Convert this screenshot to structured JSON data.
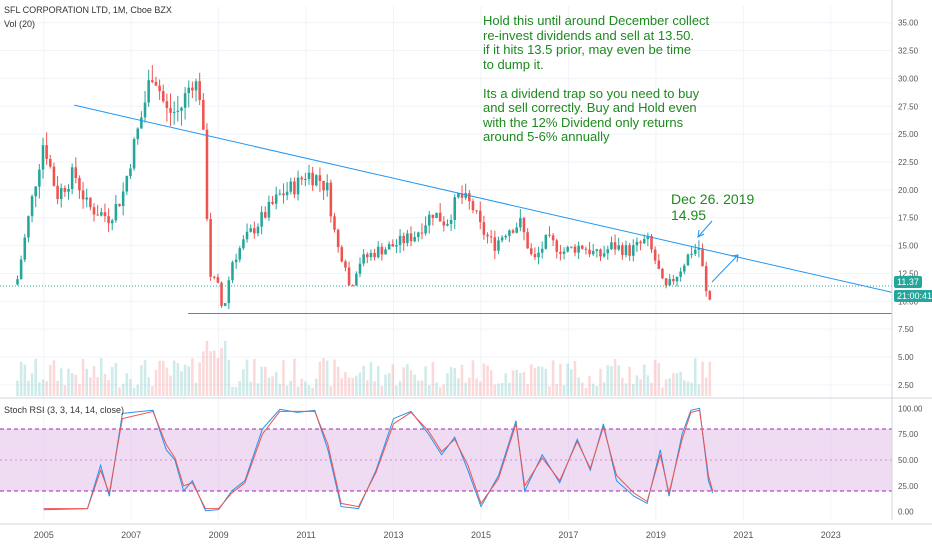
{
  "header": {
    "symbol_line": "SFL CORPORATION LTD, 1M, Cboe BZX",
    "volume_label": "Vol (20)"
  },
  "stoch_label": "Stoch RSI (3, 3, 14, 14, close)",
  "note_text": "Hold this until around December collect\nre-invest dividends and sell at 13.50.\nif it hits 13.5 prior,  may even be time\nto dump it.\n\nIts a dividend trap so you need to buy\nand sell correctly.  Buy and Hold even\nwith the 12% Dividend only returns\naround 5-6% annually",
  "annotation_text": "Dec  26. 2019\n14.95",
  "badges": {
    "price": "11.37",
    "countdown": "21:00:41"
  },
  "colors": {
    "up": "#26a69a",
    "down": "#ef5350",
    "trendline": "#2196f3",
    "note": "#1d8a1d",
    "k_line": "#2196f3",
    "d_line": "#ef5350",
    "stoch_band": "#e1bee7"
  },
  "chart_data": [
    {
      "type": "candlestick",
      "title": "SFL CORPORATION LTD, 1M, Cboe BZX",
      "x_ticks": [
        "2005",
        "2007",
        "2009",
        "2011",
        "2013",
        "2015",
        "2017",
        "2019",
        "2021",
        "2023"
      ],
      "y_ticks": [
        "2.50",
        "5.00",
        "7.50",
        "10.00",
        "12.50",
        "15.00",
        "17.50",
        "20.00",
        "22.50",
        "25.00",
        "27.50",
        "30.00",
        "32.50",
        "35.00"
      ],
      "ylim": [
        1.5,
        36.5
      ],
      "xlim": [
        2004.0,
        2024.4
      ],
      "close_path": [
        [
          2004.4,
          12
        ],
        [
          2004.7,
          18.5
        ],
        [
          2005.0,
          24.5
        ],
        [
          2005.3,
          19.5
        ],
        [
          2005.7,
          21.5
        ],
        [
          2006.0,
          18.5
        ],
        [
          2006.5,
          17.5
        ],
        [
          2006.8,
          19.5
        ],
        [
          2007.0,
          23
        ],
        [
          2007.2,
          26
        ],
        [
          2007.5,
          31
        ],
        [
          2007.8,
          27
        ],
        [
          2008.1,
          27
        ],
        [
          2008.4,
          30
        ],
        [
          2008.6,
          28.5
        ],
        [
          2008.8,
          12.5
        ],
        [
          2009.0,
          11.2
        ],
        [
          2009.1,
          8.8
        ],
        [
          2009.3,
          13.5
        ],
        [
          2009.6,
          15.5
        ],
        [
          2010.0,
          17.5
        ],
        [
          2010.4,
          19.5
        ],
        [
          2010.8,
          20.5
        ],
        [
          2011.0,
          21.5
        ],
        [
          2011.3,
          21
        ],
        [
          2011.5,
          20
        ],
        [
          2011.7,
          15
        ],
        [
          2011.9,
          13.5
        ],
        [
          2012.0,
          11
        ],
        [
          2012.2,
          13.5
        ],
        [
          2012.6,
          14.5
        ],
        [
          2013.0,
          15
        ],
        [
          2013.5,
          16
        ],
        [
          2013.9,
          18
        ],
        [
          2014.2,
          17
        ],
        [
          2014.5,
          19.5
        ],
        [
          2014.8,
          18.5
        ],
        [
          2015.0,
          16.5
        ],
        [
          2015.3,
          15
        ],
        [
          2015.6,
          16.5
        ],
        [
          2015.9,
          17
        ],
        [
          2016.2,
          13.5
        ],
        [
          2016.5,
          15.5
        ],
        [
          2016.9,
          14.5
        ],
        [
          2017.3,
          15
        ],
        [
          2017.7,
          14
        ],
        [
          2018.0,
          15
        ],
        [
          2018.4,
          14.5
        ],
        [
          2018.8,
          15.5
        ],
        [
          2019.0,
          13.5
        ],
        [
          2019.2,
          11
        ],
        [
          2019.5,
          12.5
        ],
        [
          2019.8,
          14.5
        ],
        [
          2020.0,
          14.8
        ],
        [
          2020.1,
          12
        ],
        [
          2020.2,
          9.5
        ],
        [
          2020.3,
          11.4
        ]
      ],
      "trendlines": [
        {
          "name": "descending-resistance",
          "from": [
            2005.7,
            27.6
          ],
          "to": [
            2024.4,
            10.8
          ]
        },
        {
          "name": "support",
          "from": [
            2008.3,
            8.9
          ],
          "to": [
            2024.4,
            8.9
          ]
        },
        {
          "name": "price-level",
          "from": [
            2004.0,
            11.37
          ],
          "to": [
            2024.4,
            11.37
          ]
        }
      ],
      "last_price": 11.37
    },
    {
      "type": "line",
      "title": "Stoch RSI (3, 3, 14, 14, close)",
      "y_ticks": [
        "0.00",
        "25.00",
        "50.00",
        "75.00",
        "100.00"
      ],
      "ylim": [
        -8,
        108
      ],
      "band": [
        20,
        80
      ],
      "series": [
        {
          "name": "K",
          "values": [
            [
              2005.0,
              2
            ],
            [
              2006.0,
              3
            ],
            [
              2006.3,
              45
            ],
            [
              2006.5,
              15
            ],
            [
              2006.8,
              95
            ],
            [
              2007.5,
              98
            ],
            [
              2007.8,
              60
            ],
            [
              2008.0,
              50
            ],
            [
              2008.2,
              20
            ],
            [
              2008.4,
              30
            ],
            [
              2008.7,
              1
            ],
            [
              2009.0,
              2
            ],
            [
              2009.3,
              20
            ],
            [
              2009.6,
              30
            ],
            [
              2010.0,
              80
            ],
            [
              2010.4,
              99
            ],
            [
              2010.8,
              96
            ],
            [
              2011.2,
              98
            ],
            [
              2011.5,
              60
            ],
            [
              2011.8,
              5
            ],
            [
              2012.2,
              3
            ],
            [
              2012.6,
              40
            ],
            [
              2013.0,
              90
            ],
            [
              2013.4,
              97
            ],
            [
              2013.8,
              75
            ],
            [
              2014.1,
              55
            ],
            [
              2014.4,
              72
            ],
            [
              2014.7,
              40
            ],
            [
              2015.0,
              5
            ],
            [
              2015.4,
              35
            ],
            [
              2015.8,
              88
            ],
            [
              2016.0,
              20
            ],
            [
              2016.4,
              55
            ],
            [
              2016.8,
              28
            ],
            [
              2017.2,
              70
            ],
            [
              2017.5,
              40
            ],
            [
              2017.8,
              85
            ],
            [
              2018.1,
              30
            ],
            [
              2018.5,
              15
            ],
            [
              2018.8,
              8
            ],
            [
              2019.1,
              60
            ],
            [
              2019.3,
              15
            ],
            [
              2019.6,
              75
            ],
            [
              2019.8,
              98
            ],
            [
              2020.0,
              100
            ],
            [
              2020.2,
              30
            ],
            [
              2020.3,
              18
            ]
          ]
        },
        {
          "name": "D",
          "values": [
            [
              2005.0,
              3
            ],
            [
              2006.0,
              3
            ],
            [
              2006.3,
              40
            ],
            [
              2006.5,
              18
            ],
            [
              2006.8,
              90
            ],
            [
              2007.5,
              97
            ],
            [
              2007.8,
              65
            ],
            [
              2008.0,
              52
            ],
            [
              2008.2,
              25
            ],
            [
              2008.4,
              28
            ],
            [
              2008.7,
              3
            ],
            [
              2009.0,
              3
            ],
            [
              2009.3,
              18
            ],
            [
              2009.6,
              28
            ],
            [
              2010.0,
              75
            ],
            [
              2010.4,
              97
            ],
            [
              2010.8,
              97
            ],
            [
              2011.2,
              97
            ],
            [
              2011.5,
              65
            ],
            [
              2011.8,
              8
            ],
            [
              2012.2,
              5
            ],
            [
              2012.6,
              38
            ],
            [
              2013.0,
              85
            ],
            [
              2013.4,
              96
            ],
            [
              2013.8,
              78
            ],
            [
              2014.1,
              58
            ],
            [
              2014.4,
              70
            ],
            [
              2014.7,
              45
            ],
            [
              2015.0,
              8
            ],
            [
              2015.4,
              32
            ],
            [
              2015.8,
              85
            ],
            [
              2016.0,
              25
            ],
            [
              2016.4,
              52
            ],
            [
              2016.8,
              30
            ],
            [
              2017.2,
              68
            ],
            [
              2017.5,
              42
            ],
            [
              2017.8,
              82
            ],
            [
              2018.1,
              35
            ],
            [
              2018.5,
              18
            ],
            [
              2018.8,
              10
            ],
            [
              2019.1,
              55
            ],
            [
              2019.3,
              18
            ],
            [
              2019.6,
              70
            ],
            [
              2019.8,
              96
            ],
            [
              2020.0,
              98
            ],
            [
              2020.2,
              35
            ],
            [
              2020.3,
              20
            ]
          ]
        }
      ]
    }
  ]
}
